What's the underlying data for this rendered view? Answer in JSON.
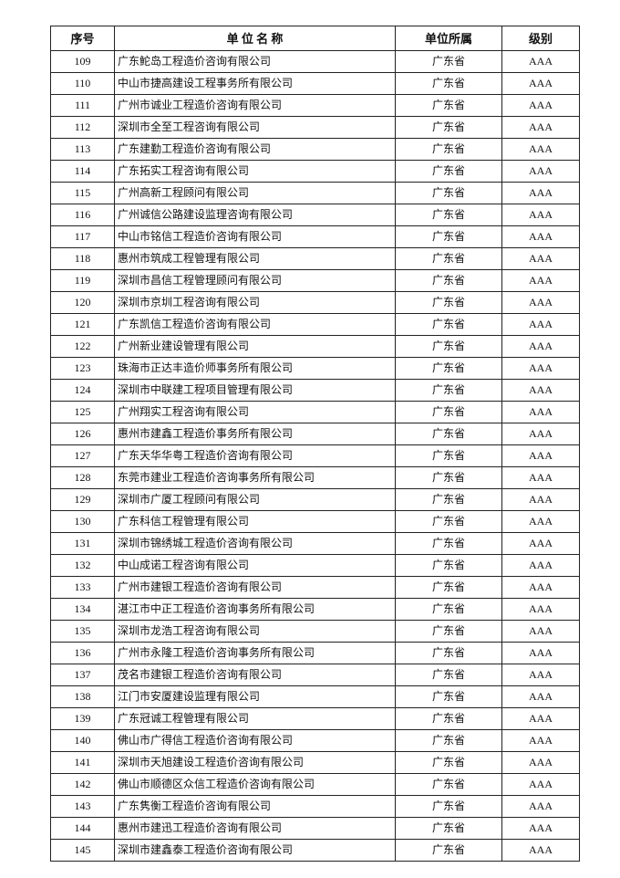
{
  "headers": {
    "no": "序号",
    "name": "单 位 名 称",
    "affiliation": "单位所属",
    "grade": "级别"
  },
  "rows": [
    {
      "no": "109",
      "name": "广东鮀岛工程造价咨询有限公司",
      "affiliation": "广东省",
      "grade": "AAA"
    },
    {
      "no": "110",
      "name": "中山市捷高建设工程事务所有限公司",
      "affiliation": "广东省",
      "grade": "AAA"
    },
    {
      "no": "111",
      "name": "广州市诚业工程造价咨询有限公司",
      "affiliation": "广东省",
      "grade": "AAA"
    },
    {
      "no": "112",
      "name": "深圳市全至工程咨询有限公司",
      "affiliation": "广东省",
      "grade": "AAA"
    },
    {
      "no": "113",
      "name": "广东建勤工程造价咨询有限公司",
      "affiliation": "广东省",
      "grade": "AAA"
    },
    {
      "no": "114",
      "name": "广东拓实工程咨询有限公司",
      "affiliation": "广东省",
      "grade": "AAA"
    },
    {
      "no": "115",
      "name": "广州高新工程顾问有限公司",
      "affiliation": "广东省",
      "grade": "AAA"
    },
    {
      "no": "116",
      "name": "广州诚信公路建设监理咨询有限公司",
      "affiliation": "广东省",
      "grade": "AAA"
    },
    {
      "no": "117",
      "name": "中山市铭信工程造价咨询有限公司",
      "affiliation": "广东省",
      "grade": "AAA"
    },
    {
      "no": "118",
      "name": "惠州市筑成工程管理有限公司",
      "affiliation": "广东省",
      "grade": "AAA"
    },
    {
      "no": "119",
      "name": "深圳市昌信工程管理顾问有限公司",
      "affiliation": "广东省",
      "grade": "AAA"
    },
    {
      "no": "120",
      "name": "深圳市京圳工程咨询有限公司",
      "affiliation": "广东省",
      "grade": "AAA"
    },
    {
      "no": "121",
      "name": "广东凯信工程造价咨询有限公司",
      "affiliation": "广东省",
      "grade": "AAA"
    },
    {
      "no": "122",
      "name": "广州新业建设管理有限公司",
      "affiliation": "广东省",
      "grade": "AAA"
    },
    {
      "no": "123",
      "name": "珠海市正达丰造价师事务所有限公司",
      "affiliation": "广东省",
      "grade": "AAA"
    },
    {
      "no": "124",
      "name": "深圳市中联建工程项目管理有限公司",
      "affiliation": "广东省",
      "grade": "AAA"
    },
    {
      "no": "125",
      "name": "广州翔实工程咨询有限公司",
      "affiliation": "广东省",
      "grade": "AAA"
    },
    {
      "no": "126",
      "name": "惠州市建鑫工程造价事务所有限公司",
      "affiliation": "广东省",
      "grade": "AAA"
    },
    {
      "no": "127",
      "name": "广东天华华粤工程造价咨询有限公司",
      "affiliation": "广东省",
      "grade": "AAA"
    },
    {
      "no": "128",
      "name": "东莞市建业工程造价咨询事务所有限公司",
      "affiliation": "广东省",
      "grade": "AAA"
    },
    {
      "no": "129",
      "name": "深圳市广厦工程顾问有限公司",
      "affiliation": "广东省",
      "grade": "AAA"
    },
    {
      "no": "130",
      "name": "广东科信工程管理有限公司",
      "affiliation": "广东省",
      "grade": "AAA"
    },
    {
      "no": "131",
      "name": "深圳市锦绣城工程造价咨询有限公司",
      "affiliation": "广东省",
      "grade": "AAA"
    },
    {
      "no": "132",
      "name": "中山成诺工程咨询有限公司",
      "affiliation": "广东省",
      "grade": "AAA"
    },
    {
      "no": "133",
      "name": "广州市建银工程造价咨询有限公司",
      "affiliation": "广东省",
      "grade": "AAA"
    },
    {
      "no": "134",
      "name": "湛江市中正工程造价咨询事务所有限公司",
      "affiliation": "广东省",
      "grade": "AAA"
    },
    {
      "no": "135",
      "name": "深圳市龙浩工程咨询有限公司",
      "affiliation": "广东省",
      "grade": "AAA"
    },
    {
      "no": "136",
      "name": "广州市永隆工程造价咨询事务所有限公司",
      "affiliation": "广东省",
      "grade": "AAA"
    },
    {
      "no": "137",
      "name": "茂名市建银工程造价咨询有限公司",
      "affiliation": "广东省",
      "grade": "AAA"
    },
    {
      "no": "138",
      "name": "江门市安厦建设监理有限公司",
      "affiliation": "广东省",
      "grade": "AAA"
    },
    {
      "no": "139",
      "name": "广东冠诚工程管理有限公司",
      "affiliation": "广东省",
      "grade": "AAA"
    },
    {
      "no": "140",
      "name": "佛山市广得信工程造价咨询有限公司",
      "affiliation": "广东省",
      "grade": "AAA"
    },
    {
      "no": "141",
      "name": "深圳市天旭建设工程造价咨询有限公司",
      "affiliation": "广东省",
      "grade": "AAA"
    },
    {
      "no": "142",
      "name": "佛山市顺德区众信工程造价咨询有限公司",
      "affiliation": "广东省",
      "grade": "AAA"
    },
    {
      "no": "143",
      "name": "广东隽衡工程造价咨询有限公司",
      "affiliation": "广东省",
      "grade": "AAA"
    },
    {
      "no": "144",
      "name": "惠州市建迅工程造价咨询有限公司",
      "affiliation": "广东省",
      "grade": "AAA"
    },
    {
      "no": "145",
      "name": "深圳市建鑫泰工程造价咨询有限公司",
      "affiliation": "广东省",
      "grade": "AAA"
    }
  ]
}
